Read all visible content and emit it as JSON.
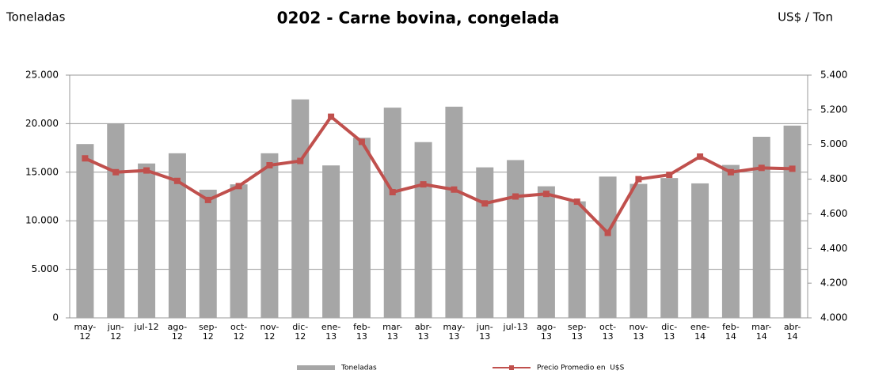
{
  "chart_data": {
    "type": "bar",
    "title": "0202 - Carne bovina, congelada",
    "y_label": "Toneladas",
    "y2_label": "US$ / Ton",
    "categories": [
      "may-12",
      "jun-12",
      "jul-12",
      "ago-12",
      "sep-12",
      "oct-12",
      "nov-12",
      "dic-12",
      "ene-13",
      "feb-13",
      "mar-13",
      "abr-13",
      "may-13",
      "jun-13",
      "jul-13",
      "ago-13",
      "sep-13",
      "oct-13",
      "nov-13",
      "dic-13",
      "ene-14",
      "feb-14",
      "mar-14",
      "abr-14"
    ],
    "series": [
      {
        "name": "Toneladas",
        "type": "bar",
        "color": "#a6a6a6",
        "values": [
          17900,
          20000,
          15900,
          16950,
          13200,
          13750,
          16950,
          22500,
          15700,
          18550,
          21650,
          18100,
          21750,
          15500,
          16250,
          13550,
          12000,
          14550,
          13800,
          14400,
          13850,
          15750,
          18650,
          19800
        ]
      },
      {
        "name": "Precio Promedio en  U$S",
        "type": "line",
        "axis": "y2",
        "color": "#c0504d",
        "values": [
          4920,
          4840,
          4850,
          4790,
          4680,
          4760,
          4880,
          4905,
          5160,
          5015,
          4725,
          4770,
          4740,
          4660,
          4700,
          4715,
          4670,
          4490,
          4800,
          4825,
          4930,
          4840,
          4865,
          4860
        ]
      }
    ],
    "ylim": [
      0,
      25000
    ],
    "yticks": [
      0,
      {
        "value": 5000,
        "label": "5.000"
      },
      {
        "value": 10000,
        "label": "10.000"
      },
      {
        "value": 15000,
        "label": "15.000"
      },
      {
        "value": 20000,
        "label": "20.000"
      },
      {
        "value": 25000,
        "label": "25.000"
      }
    ],
    "y2lim": [
      4000,
      5400
    ],
    "y2ticks": [
      {
        "value": 4000,
        "label": "4.000"
      },
      {
        "value": 4200,
        "label": "4.200"
      },
      {
        "value": 4400,
        "label": "4.400"
      },
      {
        "value": 4600,
        "label": "4.600"
      },
      {
        "value": 4800,
        "label": "4.800"
      },
      {
        "value": 5000,
        "label": "5.000"
      },
      {
        "value": 5200,
        "label": "5.200"
      },
      {
        "value": 5400,
        "label": "5.400"
      }
    ],
    "grid": true,
    "legend": "bottom"
  }
}
